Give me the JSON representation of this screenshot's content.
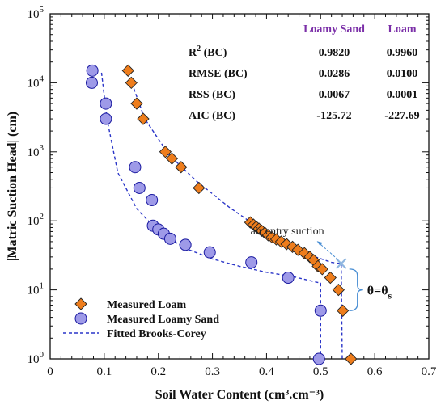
{
  "chart_data": {
    "type": "scatter",
    "title": "",
    "xlabel": "Soil Water Content (cm³.cm⁻³)",
    "ylabel": "|Matric Suction Head| (cm)",
    "xlim": [
      0,
      0.7
    ],
    "ylim": [
      1,
      100000
    ],
    "yscale": "log",
    "x_ticks": [
      "0",
      "0.1",
      "0.2",
      "0.3",
      "0.4",
      "0.5",
      "0.6",
      "0.7"
    ],
    "y_tick_labels": [
      {
        "base": "10",
        "exp": "0"
      },
      {
        "base": "10",
        "exp": "1"
      },
      {
        "base": "10",
        "exp": "2"
      },
      {
        "base": "10",
        "exp": "3"
      },
      {
        "base": "10",
        "exp": "4"
      },
      {
        "base": "10",
        "exp": "5"
      }
    ],
    "grid": false,
    "legend_position": "bottom-left",
    "series": [
      {
        "name": "Measured Loam",
        "marker": "diamond",
        "color": "#ee7d1c",
        "points": [
          [
            0.144,
            15000
          ],
          [
            0.15,
            10000
          ],
          [
            0.16,
            5000
          ],
          [
            0.172,
            3000
          ],
          [
            0.213,
            1000
          ],
          [
            0.225,
            800
          ],
          [
            0.242,
            600
          ],
          [
            0.275,
            300
          ],
          [
            0.37,
            95
          ],
          [
            0.376,
            88
          ],
          [
            0.381,
            82
          ],
          [
            0.386,
            77
          ],
          [
            0.391,
            72
          ],
          [
            0.397,
            67
          ],
          [
            0.403,
            62
          ],
          [
            0.41,
            58
          ],
          [
            0.418,
            54
          ],
          [
            0.427,
            50
          ],
          [
            0.437,
            46
          ],
          [
            0.448,
            42
          ],
          [
            0.458,
            38
          ],
          [
            0.47,
            34
          ],
          [
            0.48,
            30
          ],
          [
            0.487,
            27
          ],
          [
            0.495,
            22
          ],
          [
            0.503,
            20
          ],
          [
            0.518,
            15
          ],
          [
            0.533,
            10
          ],
          [
            0.541,
            5
          ],
          [
            0.556,
            1
          ]
        ]
      },
      {
        "name": "Measured Loamy Sand",
        "marker": "circle",
        "color": "#9e9ae8",
        "points": [
          [
            0.078,
            15000
          ],
          [
            0.077,
            10000
          ],
          [
            0.103,
            5000
          ],
          [
            0.103,
            3000
          ],
          [
            0.157,
            600
          ],
          [
            0.165,
            300
          ],
          [
            0.188,
            200
          ],
          [
            0.19,
            85
          ],
          [
            0.2,
            75
          ],
          [
            0.21,
            65
          ],
          [
            0.222,
            55
          ],
          [
            0.25,
            45
          ],
          [
            0.295,
            35
          ],
          [
            0.372,
            25
          ],
          [
            0.44,
            15
          ],
          [
            0.5,
            5
          ],
          [
            0.497,
            1
          ]
        ]
      },
      {
        "name": "Fitted Brooks-Corey",
        "type": "line",
        "style": "dashed",
        "color": "#2a35c8",
        "curves": [
          {
            "fit_for": "Loam",
            "points": [
              [
                0.144,
                14000
              ],
              [
                0.175,
                3000
              ],
              [
                0.22,
                900
              ],
              [
                0.27,
                380
              ],
              [
                0.33,
                160
              ],
              [
                0.38,
                85
              ],
              [
                0.43,
                50
              ],
              [
                0.48,
                32
              ],
              [
                0.52,
                25
              ],
              [
                0.538,
                24
              ],
              [
                0.54,
                1
              ]
            ]
          },
          {
            "fit_for": "Loamy Sand",
            "points": [
              [
                0.095,
                14000
              ],
              [
                0.105,
                3000
              ],
              [
                0.125,
                500
              ],
              [
                0.16,
                150
              ],
              [
                0.2,
                70
              ],
              [
                0.25,
                40
              ],
              [
                0.3,
                28
              ],
              [
                0.35,
                22
              ],
              [
                0.4,
                18
              ],
              [
                0.45,
                15.5
              ],
              [
                0.5,
                12.5
              ],
              [
                0.5,
                1
              ]
            ]
          }
        ]
      }
    ],
    "annotations": {
      "air_entry_text": "air entry suction",
      "air_entry_point": [
        0.538,
        24
      ],
      "air_entry_label_anchor": [
        0.49,
        60
      ],
      "theta_main": "θ=θ",
      "theta_sub": "s",
      "brace_range": [
        5,
        20
      ]
    },
    "stats_table": {
      "col_headers": [
        "Loamy Sand",
        "Loam"
      ],
      "header_color": "#7b2fa8",
      "rows": [
        {
          "label_main": "R",
          "label_sup": "2",
          "label_rest": " (BC)",
          "values": [
            "0.9820",
            "0.9960"
          ]
        },
        {
          "label_main": "RMSE (BC)",
          "label_sup": "",
          "label_rest": "",
          "values": [
            "0.0286",
            "0.0100"
          ]
        },
        {
          "label_main": "RSS (BC)",
          "label_sup": "",
          "label_rest": "",
          "values": [
            "0.0067",
            "0.0001"
          ]
        },
        {
          "label_main": "AIC (BC)",
          "label_sup": "",
          "label_rest": "",
          "values": [
            "-125.72",
            "-227.69"
          ]
        }
      ]
    }
  }
}
